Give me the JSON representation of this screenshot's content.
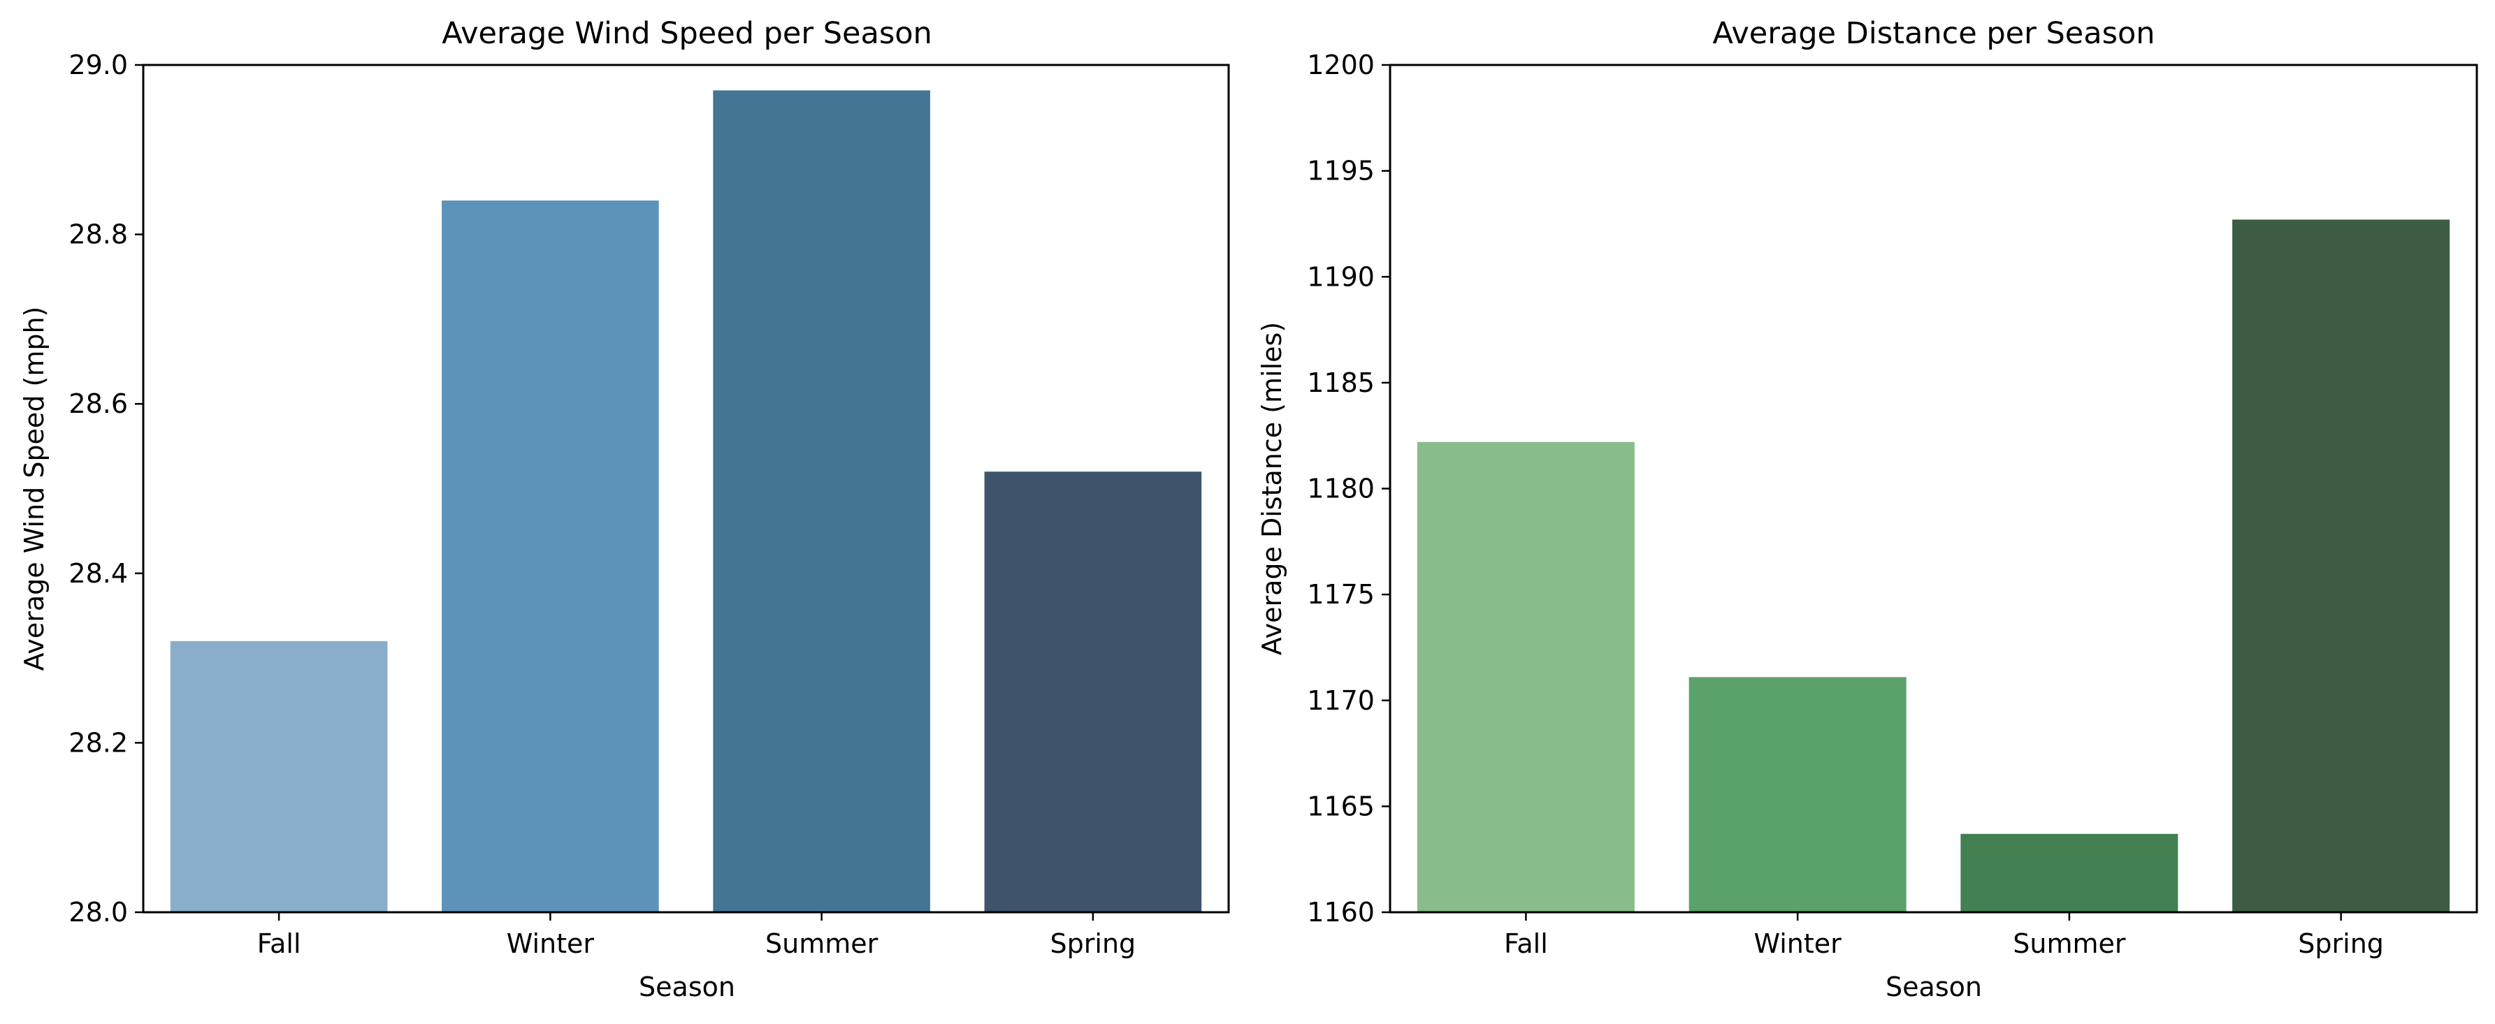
{
  "chart_data": [
    {
      "type": "bar",
      "title": "Average Wind Speed per Season",
      "xlabel": "Season",
      "ylabel": "Average Wind Speed (mph)",
      "categories": [
        "Fall",
        "Winter",
        "Summer",
        "Spring"
      ],
      "values": [
        28.32,
        28.84,
        28.97,
        28.52
      ],
      "ylim": [
        28.0,
        29.0
      ],
      "yticks": [
        "28.0",
        "28.2",
        "28.4",
        "28.6",
        "28.8",
        "29.0"
      ],
      "colors": [
        "#89aecb",
        "#5d93b9",
        "#457595",
        "#3d546a"
      ],
      "grid": false,
      "legend": "none"
    },
    {
      "type": "bar",
      "title": "Average Distance per Season",
      "xlabel": "Season",
      "ylabel": "Average Distance (miles)",
      "categories": [
        "Fall",
        "Winter",
        "Summer",
        "Spring"
      ],
      "values": [
        1182.2,
        1171.1,
        1163.7,
        1192.7
      ],
      "ylim": [
        1160,
        1200
      ],
      "yticks": [
        "1160",
        "1165",
        "1170",
        "1175",
        "1180",
        "1185",
        "1190",
        "1195",
        "1200"
      ],
      "colors": [
        "#89bc8b",
        "#5ba16a",
        "#428052",
        "#3d5c44"
      ],
      "grid": false,
      "legend": "none"
    }
  ]
}
